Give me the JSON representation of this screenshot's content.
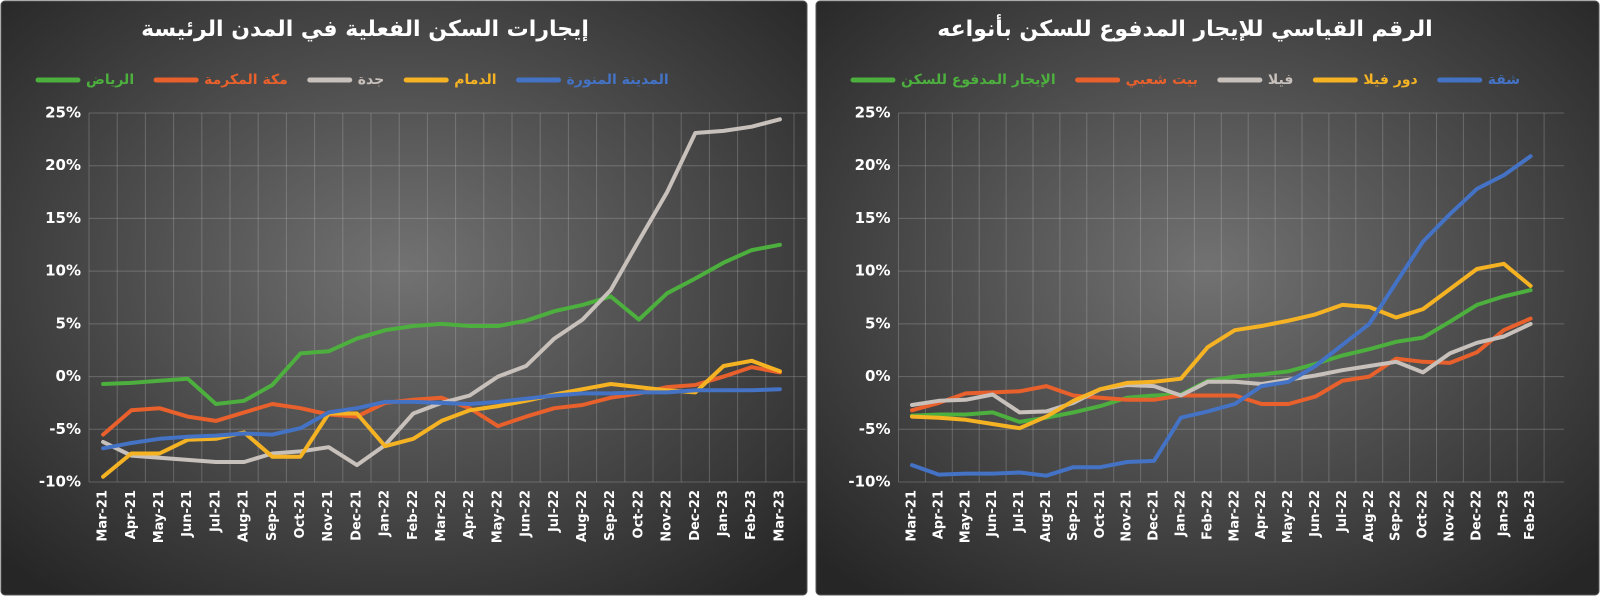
{
  "chart_data": [
    {
      "type": "line",
      "title": "إيجارات السكن الفعلية في المدن الرئيسة",
      "categories": [
        "Mar-21",
        "Apr-21",
        "May-21",
        "Jun-21",
        "Jul-21",
        "Aug-21",
        "Sep-21",
        "Oct-21",
        "Nov-21",
        "Dec-21",
        "Jan-22",
        "Feb-22",
        "Mar-22",
        "Apr-22",
        "May-22",
        "Jun-22",
        "Jul-22",
        "Aug-22",
        "Sep-22",
        "Oct-22",
        "Nov-22",
        "Dec-22",
        "Jan-23",
        "Feb-23",
        "Mar-23"
      ],
      "series": [
        {
          "name": "الرياض",
          "color": "#4caf3e",
          "values": [
            -0.7,
            -0.6,
            -0.4,
            -0.2,
            -2.6,
            -2.3,
            -0.8,
            2.2,
            2.4,
            3.6,
            4.4,
            4.8,
            5.0,
            4.8,
            4.8,
            5.3,
            6.2,
            6.8,
            7.6,
            5.4,
            7.9,
            9.3,
            10.8,
            12.0,
            12.5
          ]
        },
        {
          "name": "مكة المكرمة",
          "color": "#e8602c",
          "values": [
            -5.5,
            -3.2,
            -3.0,
            -3.8,
            -4.2,
            -3.4,
            -2.6,
            -3.0,
            -3.6,
            -3.8,
            -2.5,
            -2.2,
            -2.0,
            -3.0,
            -4.7,
            -3.8,
            -3.0,
            -2.7,
            -2.0,
            -1.6,
            -1.0,
            -0.8,
            0.0,
            0.9,
            0.4
          ]
        },
        {
          "name": "جدة",
          "color": "#c8c0bb",
          "values": [
            -6.2,
            -7.5,
            -7.7,
            -7.9,
            -8.1,
            -8.1,
            -7.3,
            -7.1,
            -6.7,
            -8.4,
            -6.5,
            -3.5,
            -2.5,
            -1.8,
            0.0,
            1.0,
            3.6,
            5.4,
            8.2,
            12.9,
            17.5,
            23.1,
            23.3,
            23.7,
            24.4
          ]
        },
        {
          "name": "الدمام",
          "color": "#f5b324",
          "values": [
            -9.5,
            -7.3,
            -7.3,
            -6.0,
            -5.9,
            -5.3,
            -7.6,
            -7.6,
            -3.5,
            -3.5,
            -6.6,
            -5.9,
            -4.2,
            -3.2,
            -2.8,
            -2.3,
            -1.7,
            -1.2,
            -0.7,
            -1.0,
            -1.3,
            -1.5,
            1.0,
            1.5,
            0.5
          ]
        },
        {
          "name": "المدينة المنورة",
          "color": "#4472c4",
          "values": [
            -6.8,
            -6.3,
            -5.9,
            -5.7,
            -5.6,
            -5.4,
            -5.5,
            -4.9,
            -3.4,
            -3.0,
            -2.4,
            -2.4,
            -2.5,
            -2.6,
            -2.4,
            -2.1,
            -1.8,
            -1.6,
            -1.6,
            -1.5,
            -1.5,
            -1.3,
            -1.3,
            -1.3,
            -1.2
          ]
        }
      ],
      "ylim": [
        -10,
        25
      ],
      "yticks": [
        {
          "value": -10,
          "label": "-10%"
        },
        {
          "value": -5,
          "label": "-5%"
        },
        {
          "value": 0,
          "label": "0%"
        },
        {
          "value": 5,
          "label": "5%"
        },
        {
          "value": 10,
          "label": "10%"
        },
        {
          "value": 15,
          "label": "15%"
        },
        {
          "value": 20,
          "label": "20%"
        },
        {
          "value": 25,
          "label": "25%"
        }
      ],
      "grid": true
    },
    {
      "type": "line",
      "title": "الرقم القياسي للإيجار المدفوع للسكن بأنواعه",
      "categories": [
        "Mar-21",
        "Apr-21",
        "May-21",
        "Jun-21",
        "Jul-21",
        "Aug-21",
        "Sep-21",
        "Oct-21",
        "Nov-21",
        "Dec-21",
        "Jan-22",
        "Feb-22",
        "Mar-22",
        "Apr-22",
        "May-22",
        "Jun-22",
        "Jul-22",
        "Aug-22",
        "Sep-22",
        "Oct-22",
        "Nov-22",
        "Dec-22",
        "Jan-23",
        "Feb-23"
      ],
      "series": [
        {
          "name": "الإيجار المدفوع للسكن",
          "color": "#4caf3e",
          "values": [
            -3.7,
            -3.6,
            -3.6,
            -3.4,
            -4.3,
            -3.9,
            -3.4,
            -2.8,
            -2.0,
            -1.8,
            -1.7,
            -0.4,
            0.0,
            0.2,
            0.5,
            1.2,
            2.0,
            2.6,
            3.3,
            3.7,
            5.2,
            6.8,
            7.6,
            8.2
          ]
        },
        {
          "name": "بيت شعبي",
          "color": "#e8602c",
          "values": [
            -3.2,
            -2.5,
            -1.6,
            -1.5,
            -1.4,
            -0.9,
            -1.8,
            -2.0,
            -2.2,
            -2.2,
            -1.8,
            -1.8,
            -1.8,
            -2.6,
            -2.6,
            -1.9,
            -0.4,
            0.0,
            1.7,
            1.4,
            1.3,
            2.3,
            4.4,
            5.5
          ]
        },
        {
          "name": "فيلا",
          "color": "#c8c0bb",
          "values": [
            -2.7,
            -2.3,
            -2.2,
            -1.7,
            -3.4,
            -3.3,
            -2.5,
            -1.2,
            -0.8,
            -0.9,
            -1.8,
            -0.5,
            -0.5,
            -0.7,
            -0.3,
            0.1,
            0.6,
            1.0,
            1.4,
            0.4,
            2.2,
            3.2,
            3.8,
            5.0
          ]
        },
        {
          "name": "دور فيلا",
          "color": "#f5b324",
          "values": [
            -3.8,
            -3.9,
            -4.1,
            -4.5,
            -4.9,
            -3.8,
            -2.3,
            -1.2,
            -0.6,
            -0.5,
            -0.2,
            2.8,
            4.4,
            4.8,
            5.3,
            5.9,
            6.8,
            6.6,
            5.6,
            6.4,
            8.3,
            10.2,
            10.7,
            8.6
          ]
        },
        {
          "name": "شقة",
          "color": "#4472c4",
          "values": [
            -8.4,
            -9.3,
            -9.2,
            -9.2,
            -9.1,
            -9.4,
            -8.6,
            -8.6,
            -8.1,
            -8.0,
            -3.9,
            -3.3,
            -2.6,
            -0.9,
            -0.5,
            1.0,
            3.0,
            5.0,
            8.9,
            12.8,
            15.4,
            17.8,
            19.1,
            20.9
          ]
        }
      ],
      "ylim": [
        -10,
        25
      ],
      "yticks": [
        {
          "value": -10,
          "label": "-10%"
        },
        {
          "value": -5,
          "label": "-5%"
        },
        {
          "value": 0,
          "label": "0%"
        },
        {
          "value": 5,
          "label": "5%"
        },
        {
          "value": 10,
          "label": "10%"
        },
        {
          "value": 15,
          "label": "15%"
        },
        {
          "value": 20,
          "label": "20%"
        },
        {
          "value": 25,
          "label": "25%"
        }
      ],
      "grid": true
    }
  ]
}
